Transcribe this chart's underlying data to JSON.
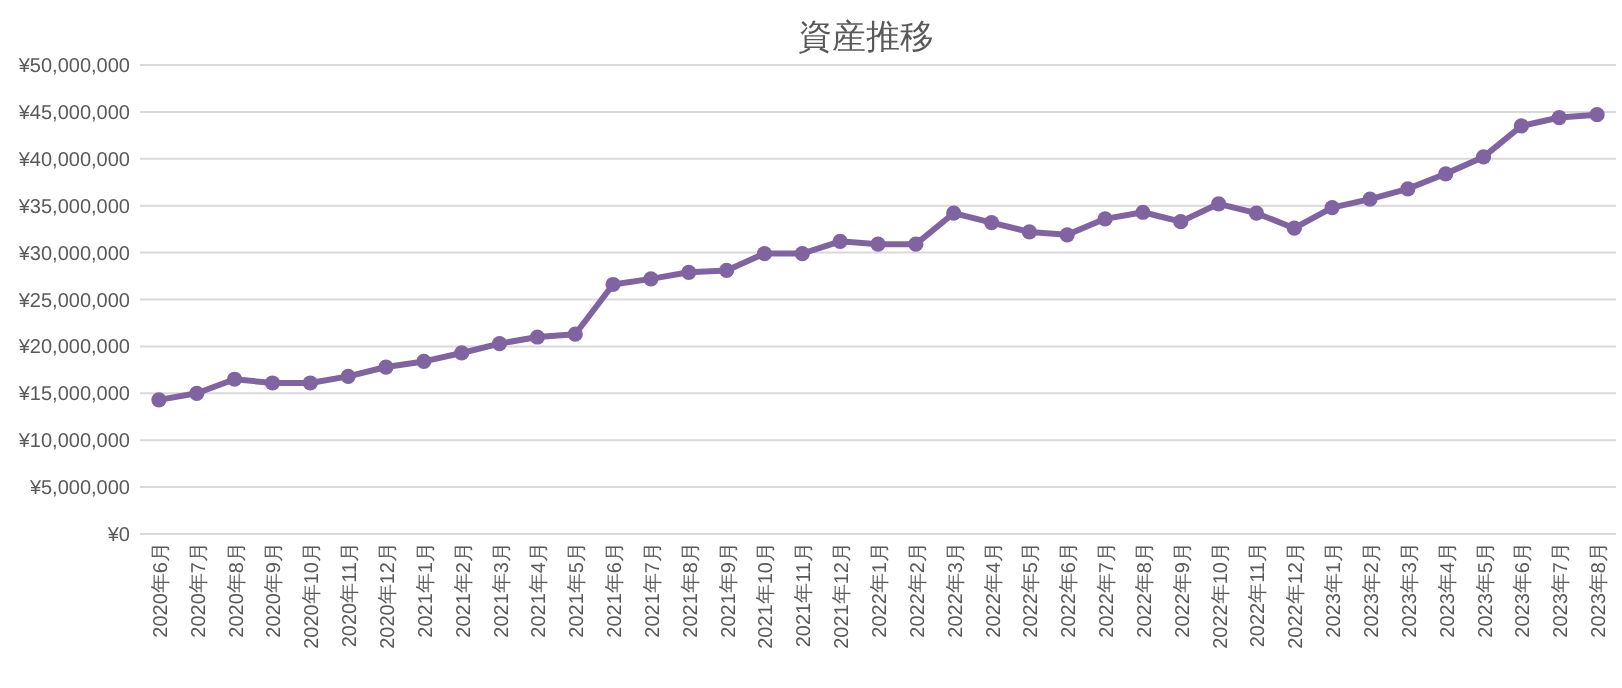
{
  "chart_data": {
    "type": "line",
    "title": "資産推移",
    "categories": [
      "2020年6月",
      "2020年7月",
      "2020年8月",
      "2020年9月",
      "2020年10月",
      "2020年11月",
      "2020年12月",
      "2021年1月",
      "2021年2月",
      "2021年3月",
      "2021年4月",
      "2021年5月",
      "2021年6月",
      "2021年7月",
      "2021年8月",
      "2021年9月",
      "2021年10月",
      "2021年11月",
      "2021年12月",
      "2022年1月",
      "2022年2月",
      "2022年3月",
      "2022年4月",
      "2022年5月",
      "2022年6月",
      "2022年7月",
      "2022年8月",
      "2022年9月",
      "2022年10月",
      "2022年11月",
      "2022年12月",
      "2023年1月",
      "2023年2月",
      "2023年3月",
      "2023年4月",
      "2023年5月",
      "2023年6月",
      "2023年7月",
      "2023年8月"
    ],
    "series": [
      {
        "color": "#8064a2",
        "values": [
          14300000,
          15000000,
          16500000,
          16100000,
          16100000,
          16800000,
          17800000,
          18400000,
          19300000,
          20300000,
          21000000,
          21300000,
          26600000,
          27200000,
          27900000,
          28100000,
          29900000,
          29900000,
          31200000,
          30900000,
          30900000,
          34200000,
          33200000,
          32200000,
          31900000,
          33600000,
          34300000,
          33300000,
          35200000,
          34200000,
          32600000,
          34800000,
          35700000,
          36800000,
          38400000,
          40200000,
          43500000,
          44400000,
          44700000
        ]
      }
    ],
    "ylim": [
      0,
      50000000
    ],
    "yticks": [
      {
        "value": 0,
        "label": "¥0"
      },
      {
        "value": 5000000,
        "label": "¥5,000,000"
      },
      {
        "value": 10000000,
        "label": "¥10,000,000"
      },
      {
        "value": 15000000,
        "label": "¥15,000,000"
      },
      {
        "value": 20000000,
        "label": "¥20,000,000"
      },
      {
        "value": 25000000,
        "label": "¥25,000,000"
      },
      {
        "value": 30000000,
        "label": "¥30,000,000"
      },
      {
        "value": 35000000,
        "label": "¥35,000,000"
      },
      {
        "value": 40000000,
        "label": "¥40,000,000"
      },
      {
        "value": 45000000,
        "label": "¥45,000,000"
      },
      {
        "value": 50000000,
        "label": "¥50,000,000"
      }
    ],
    "grid": "y",
    "marker": "circle",
    "line_style": "solid"
  }
}
